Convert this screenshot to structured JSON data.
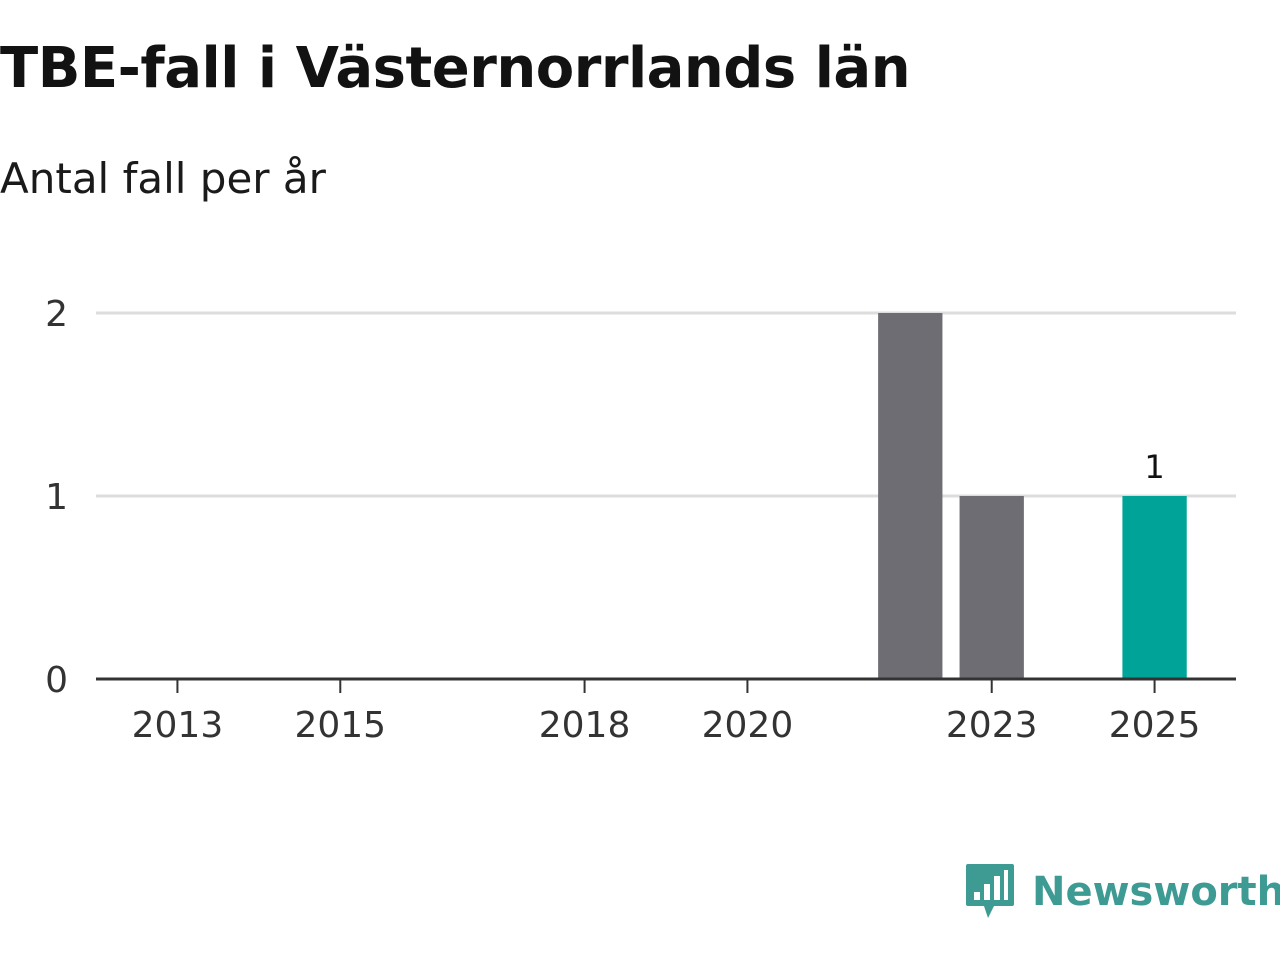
{
  "chart_data": {
    "type": "bar",
    "title": "TBE-fall i Västernorrlands län",
    "subtitle": "Antal fall per år",
    "xlabel": "",
    "ylabel": "",
    "ylim": [
      0,
      2
    ],
    "xlim": [
      2012,
      2026
    ],
    "x": [
      2022,
      2023,
      2025
    ],
    "values": [
      2,
      1,
      1
    ],
    "highlight_x": 2025,
    "data_labels": [
      {
        "x": 2025,
        "label": "1"
      }
    ],
    "y_ticks": [
      0,
      1,
      2
    ],
    "x_ticks": [
      2013,
      2015,
      2018,
      2020,
      2023,
      2025
    ],
    "grid": true,
    "colors": {
      "bar": "#6e6d74",
      "highlight": "#00a398",
      "grid": "#dddddd",
      "axis": "#333333"
    }
  },
  "brand": {
    "name": "Newsworthy",
    "icon": "newsworthy-logo-icon",
    "color": "#3d9b94"
  }
}
